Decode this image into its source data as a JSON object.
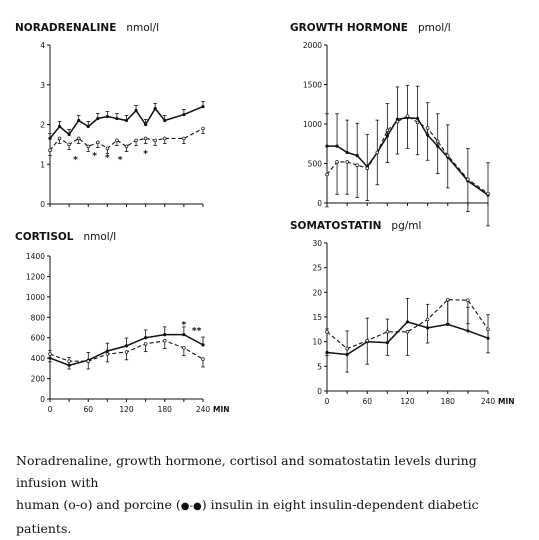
{
  "chart_data": [
    {
      "type": "line",
      "title": "NORADRENALINE",
      "unit": "nmol/l",
      "ylim": [
        0,
        4
      ],
      "yticks": [
        "0",
        "1",
        "2",
        "3",
        "4"
      ],
      "x": [
        0,
        15,
        30,
        45,
        60,
        75,
        90,
        105,
        120,
        135,
        150,
        165,
        180,
        210,
        240
      ],
      "series": [
        {
          "style": "solid",
          "values": [
            1.65,
            1.95,
            1.75,
            2.1,
            1.95,
            2.15,
            2.2,
            2.15,
            2.1,
            2.35,
            2.0,
            2.4,
            2.1,
            2.25,
            2.45
          ]
        },
        {
          "style": "dashed",
          "values": [
            1.35,
            1.65,
            1.5,
            1.65,
            1.45,
            1.55,
            1.4,
            1.6,
            1.45,
            1.6,
            1.65,
            1.6,
            1.65,
            1.65,
            1.9
          ]
        }
      ],
      "stars": [
        "*",
        "*",
        "*",
        "*",
        "*"
      ]
    },
    {
      "type": "line",
      "title": "GROWTH HORMONE",
      "unit": "pmol/l",
      "ylim": [
        0,
        2000
      ],
      "yticks": [
        "0",
        "500",
        "1000",
        "1500",
        "2000"
      ],
      "x": [
        0,
        15,
        30,
        45,
        60,
        75,
        90,
        105,
        120,
        135,
        150,
        165,
        180,
        210,
        240
      ],
      "series": [
        {
          "style": "solid",
          "values": [
            720,
            720,
            640,
            600,
            460,
            640,
            850,
            1060,
            1080,
            1070,
            860,
            720,
            580,
            280,
            100
          ]
        },
        {
          "style": "dashed",
          "values": [
            360,
            520,
            520,
            480,
            440,
            640,
            920,
            1030,
            1100,
            1020,
            950,
            780,
            600,
            300,
            120
          ]
        }
      ]
    },
    {
      "type": "line",
      "title": "CORTISOL",
      "unit": "nmol/l",
      "ylim": [
        0,
        1400
      ],
      "yticks": [
        "0",
        "200",
        "400",
        "600",
        "800",
        "1000",
        "1200",
        "1400"
      ],
      "xticks": [
        "0",
        "60",
        "120",
        "180",
        "240"
      ],
      "xunit": "MIN",
      "x": [
        0,
        30,
        60,
        90,
        120,
        150,
        180,
        210,
        240
      ],
      "series": [
        {
          "style": "solid",
          "values": [
            400,
            330,
            380,
            470,
            520,
            600,
            630,
            630,
            530
          ]
        },
        {
          "style": "dashed",
          "values": [
            440,
            370,
            370,
            440,
            460,
            540,
            570,
            500,
            390
          ]
        }
      ],
      "stars": [
        "*",
        "**"
      ]
    },
    {
      "type": "line",
      "title": "SOMATOSTATIN",
      "unit": "pg/ml",
      "ylim": [
        0,
        30
      ],
      "yticks": [
        "0",
        "5",
        "10",
        "15",
        "20",
        "25",
        "30"
      ],
      "xticks": [
        "0",
        "60",
        "120",
        "180",
        "240"
      ],
      "xunit": "MIN",
      "x": [
        0,
        30,
        60,
        90,
        120,
        150,
        180,
        210,
        240
      ],
      "series": [
        {
          "style": "solid",
          "values": [
            7.8,
            7.4,
            10,
            9.8,
            14,
            12.8,
            13.5,
            12.2,
            10.7
          ]
        },
        {
          "style": "dashed",
          "values": [
            12,
            8.6,
            10.2,
            12,
            12,
            14.5,
            18.5,
            18.4,
            12.5
          ]
        }
      ]
    }
  ],
  "caption": {
    "line1": "Noradrenaline, growth hormone, cortisol and somatostatin levels during infusion with",
    "line2_a": "human (o-o) and porcine (",
    "line2_symbol": "●-●",
    "line2_b": ") insulin in eight insulin-dependent diabetic patients."
  }
}
